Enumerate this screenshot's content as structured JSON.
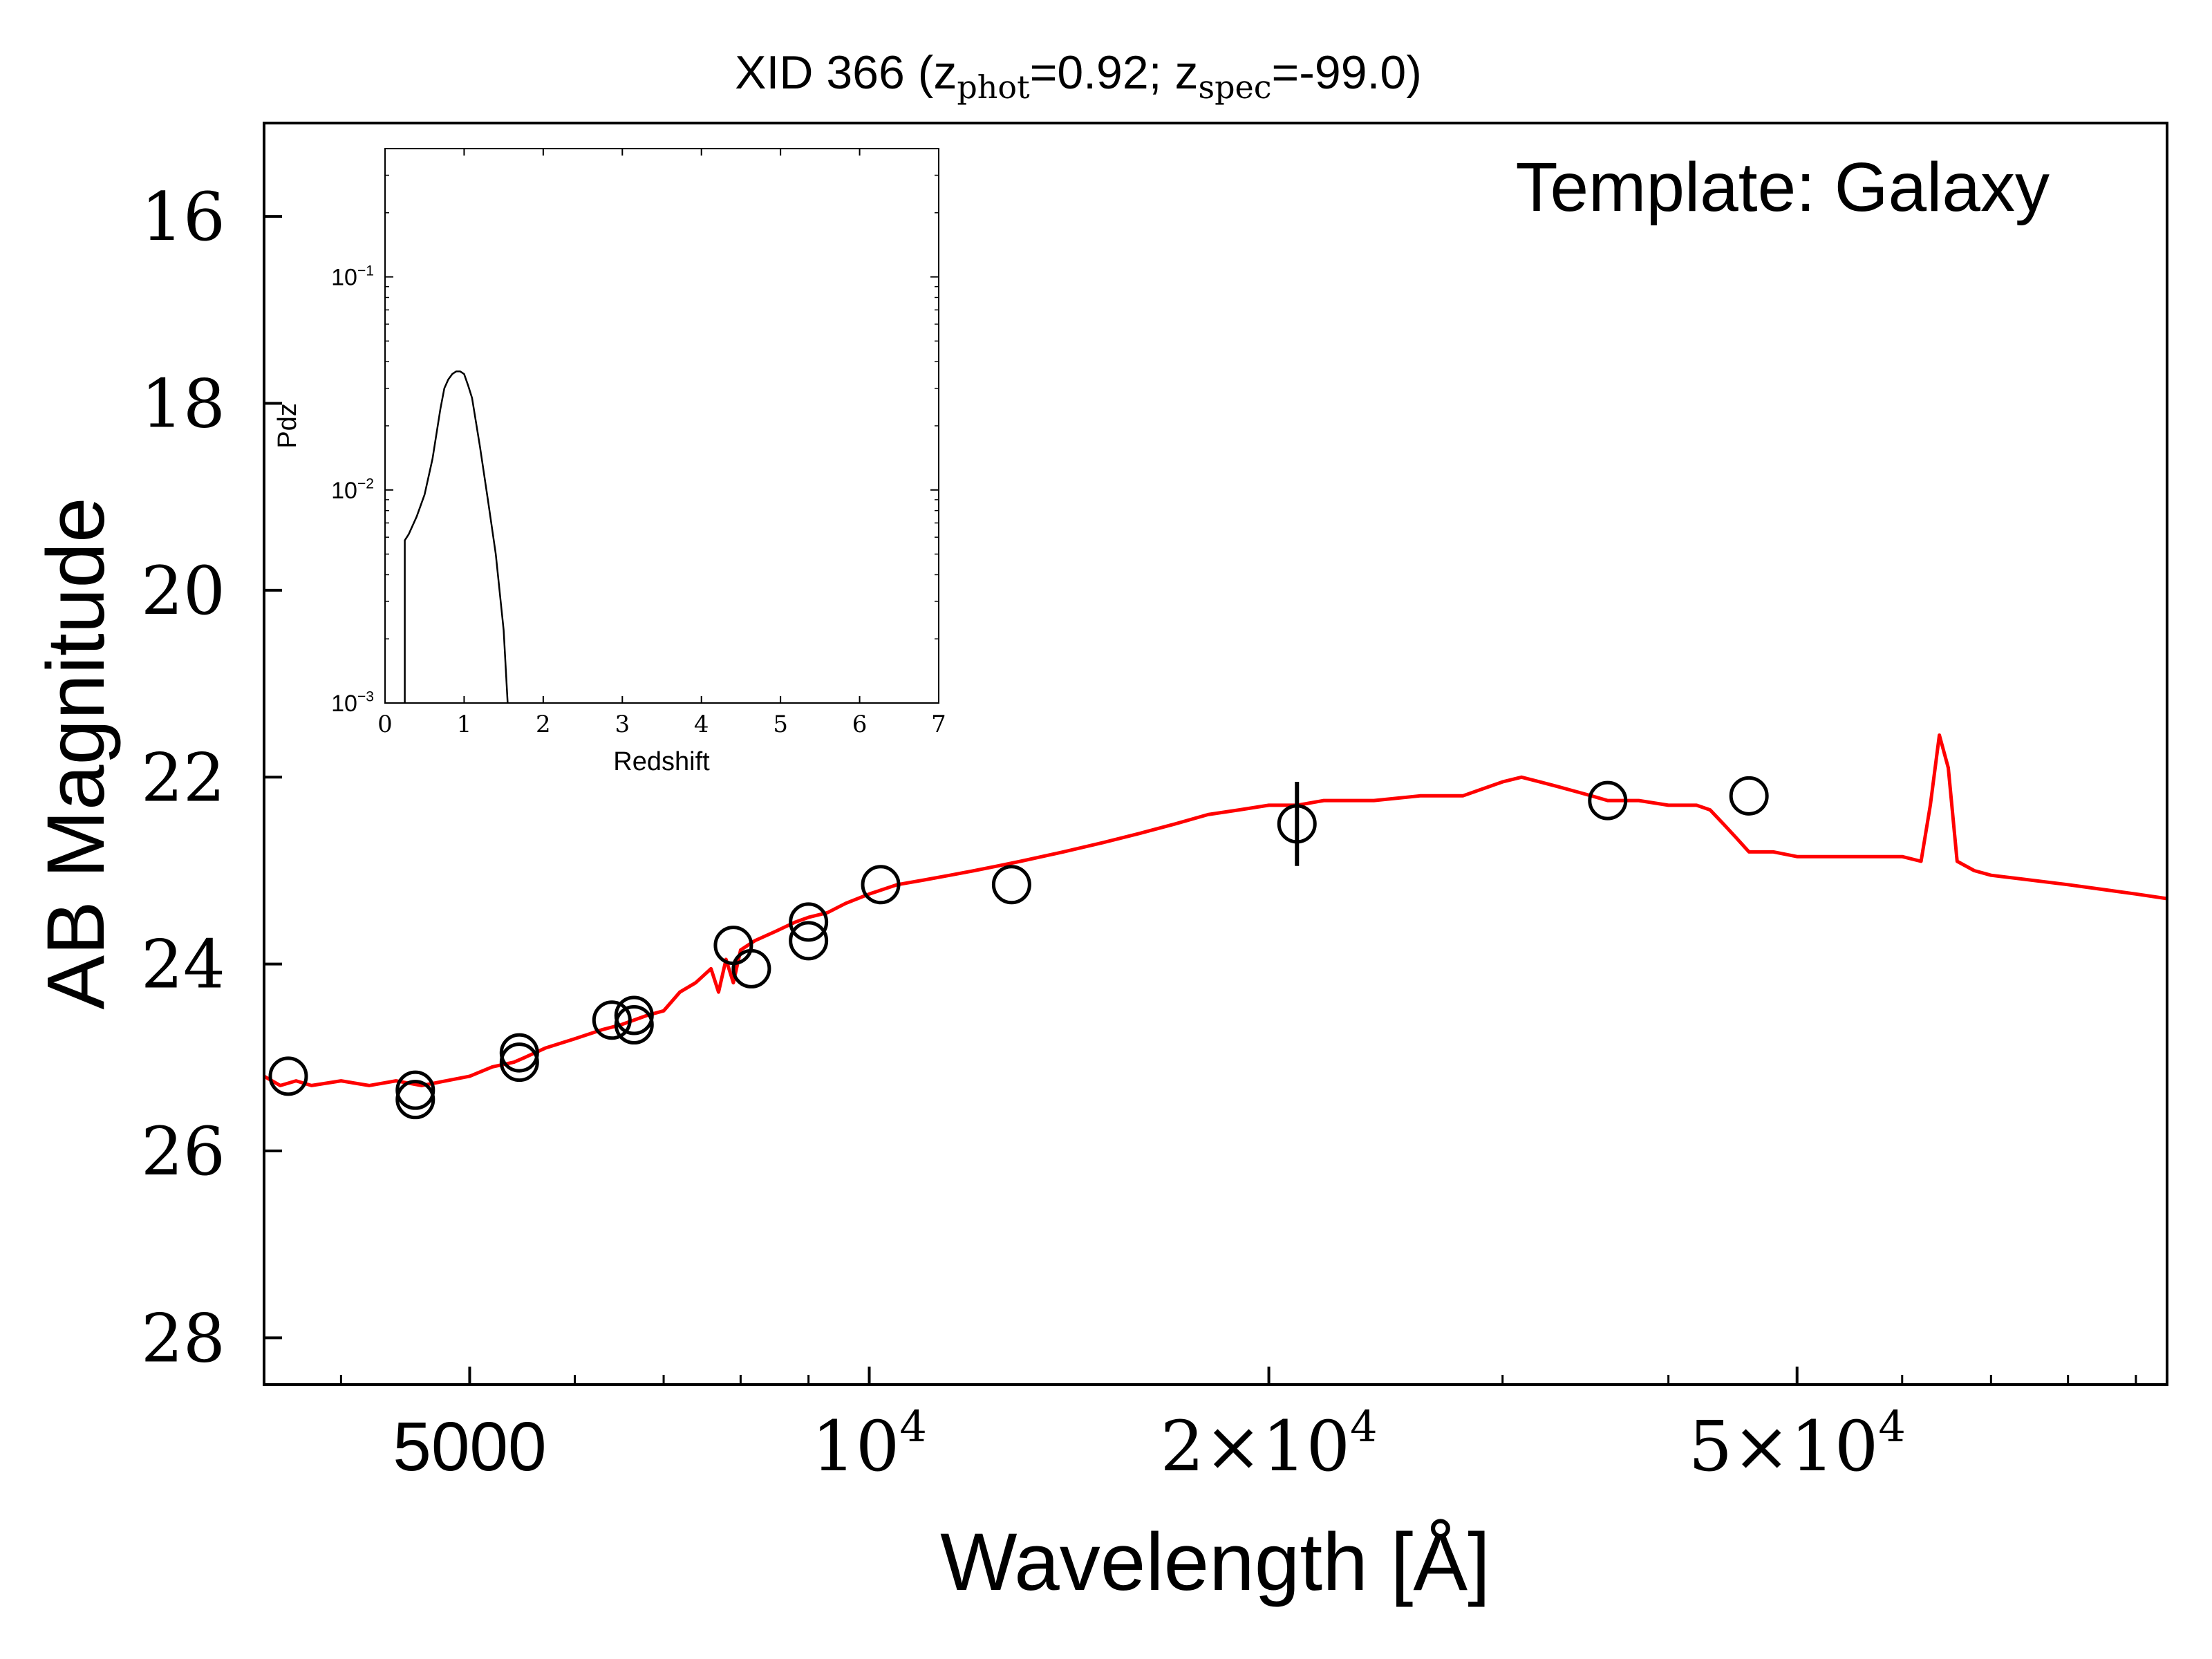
{
  "chart_data": [
    {
      "type": "scatter",
      "title": {
        "prefix": "XID 366 (z",
        "sub1": "phot",
        "mid": "=0.92; z",
        "sub2": "spec",
        "suffix": "=-99.0)"
      },
      "annotation": "Template: Galaxy",
      "xlabel": "Wavelength [Å]",
      "ylabel": "AB Magnitude",
      "xscale": "log",
      "xlim": [
        3500,
        95000
      ],
      "ylim": [
        28.5,
        15.0
      ],
      "y_inverted": true,
      "x_ticks": [
        {
          "value": 5000,
          "label": "5000"
        },
        {
          "value": 10000,
          "base": "10",
          "exp": "4"
        },
        {
          "value": 20000,
          "base": "2×10",
          "exp": "4"
        },
        {
          "value": 50000,
          "base": "5×10",
          "exp": "4"
        }
      ],
      "y_ticks": [
        {
          "value": 16,
          "label": "16"
        },
        {
          "value": 18,
          "label": "18"
        },
        {
          "value": 20,
          "label": "20"
        },
        {
          "value": 22,
          "label": "22"
        },
        {
          "value": 24,
          "label": "24"
        },
        {
          "value": 26,
          "label": "26"
        },
        {
          "value": 28,
          "label": "28"
        }
      ],
      "series": [
        {
          "kind": "line",
          "color": "#ff0000",
          "x": [
            3500,
            3600,
            3700,
            3800,
            4000,
            4200,
            4400,
            4600,
            4800,
            5000,
            5200,
            5400,
            5500,
            5700,
            6000,
            6300,
            6500,
            6800,
            7000,
            7200,
            7400,
            7600,
            7700,
            7800,
            7900,
            8000,
            8200,
            8500,
            8800,
            9000,
            9300,
            9600,
            10000,
            10500,
            11000,
            11500,
            12000,
            12500,
            13000,
            14000,
            15000,
            16000,
            17000,
            18000,
            19000,
            20000,
            21000,
            22000,
            24000,
            26000,
            28000,
            30000,
            31000,
            32000,
            33000,
            34000,
            35000,
            36000,
            38000,
            40000,
            42000,
            43000,
            44000,
            45000,
            46000,
            48000,
            50000,
            55000,
            60000,
            62000,
            63000,
            64000,
            65000,
            66000,
            68000,
            70000,
            80000,
            90000,
            95000
          ],
          "y": [
            25.2,
            25.3,
            25.25,
            25.3,
            25.25,
            25.3,
            25.25,
            25.3,
            25.25,
            25.2,
            25.1,
            25.05,
            25.0,
            24.9,
            24.8,
            24.7,
            24.65,
            24.55,
            24.5,
            24.3,
            24.2,
            24.05,
            24.3,
            23.95,
            24.2,
            23.85,
            23.75,
            23.65,
            23.55,
            23.5,
            23.45,
            23.35,
            23.25,
            23.15,
            23.1,
            23.05,
            23.0,
            22.95,
            22.9,
            22.8,
            22.7,
            22.6,
            22.5,
            22.4,
            22.35,
            22.3,
            22.3,
            22.25,
            22.25,
            22.2,
            22.2,
            22.05,
            22.0,
            22.05,
            22.1,
            22.15,
            22.2,
            22.25,
            22.25,
            22.3,
            22.3,
            22.35,
            22.5,
            22.65,
            22.8,
            22.8,
            22.85,
            22.85,
            22.85,
            22.9,
            22.3,
            21.55,
            21.9,
            22.9,
            23.0,
            23.05,
            23.15,
            23.25,
            23.3
          ]
        },
        {
          "kind": "scatter",
          "marker": "open-circle",
          "color": "#000000",
          "x": [
            3650,
            4550,
            4550,
            5450,
            5450,
            6400,
            6650,
            6650,
            7900,
            8150,
            9000,
            9000,
            10200,
            12800,
            21000,
            36000,
            46000
          ],
          "y": [
            25.2,
            25.45,
            25.35,
            25.05,
            24.95,
            24.6,
            24.65,
            24.55,
            23.8,
            24.05,
            23.75,
            23.55,
            23.15,
            23.15,
            22.5,
            22.25,
            22.2
          ],
          "yerr": [
            0,
            0,
            0,
            0,
            0,
            0,
            0,
            0,
            0,
            0,
            0,
            0,
            0,
            0,
            0.45,
            0,
            0
          ]
        }
      ]
    },
    {
      "type": "line",
      "xlabel": "Redshift",
      "ylabel": "Pdz",
      "yscale": "log",
      "xlim": [
        0,
        7
      ],
      "ylim": [
        0.001,
        0.4
      ],
      "x_ticks": [
        "0",
        "1",
        "2",
        "3",
        "4",
        "5",
        "6",
        "7"
      ],
      "y_ticks": [
        {
          "value": 0.001,
          "base": "10",
          "exp": "−3"
        },
        {
          "value": 0.01,
          "base": "10",
          "exp": "−2"
        },
        {
          "value": 0.1,
          "base": "10",
          "exp": "−1"
        }
      ],
      "series": [
        {
          "color": "#000000",
          "x": [
            0.25,
            0.25,
            0.3,
            0.4,
            0.5,
            0.6,
            0.7,
            0.75,
            0.8,
            0.85,
            0.9,
            0.95,
            1.0,
            1.05,
            1.1,
            1.2,
            1.3,
            1.4,
            1.5,
            1.55
          ],
          "y": [
            0.001,
            0.0058,
            0.0062,
            0.0075,
            0.0095,
            0.014,
            0.024,
            0.03,
            0.033,
            0.035,
            0.036,
            0.036,
            0.035,
            0.031,
            0.027,
            0.016,
            0.009,
            0.005,
            0.0022,
            0.001
          ]
        }
      ]
    }
  ]
}
